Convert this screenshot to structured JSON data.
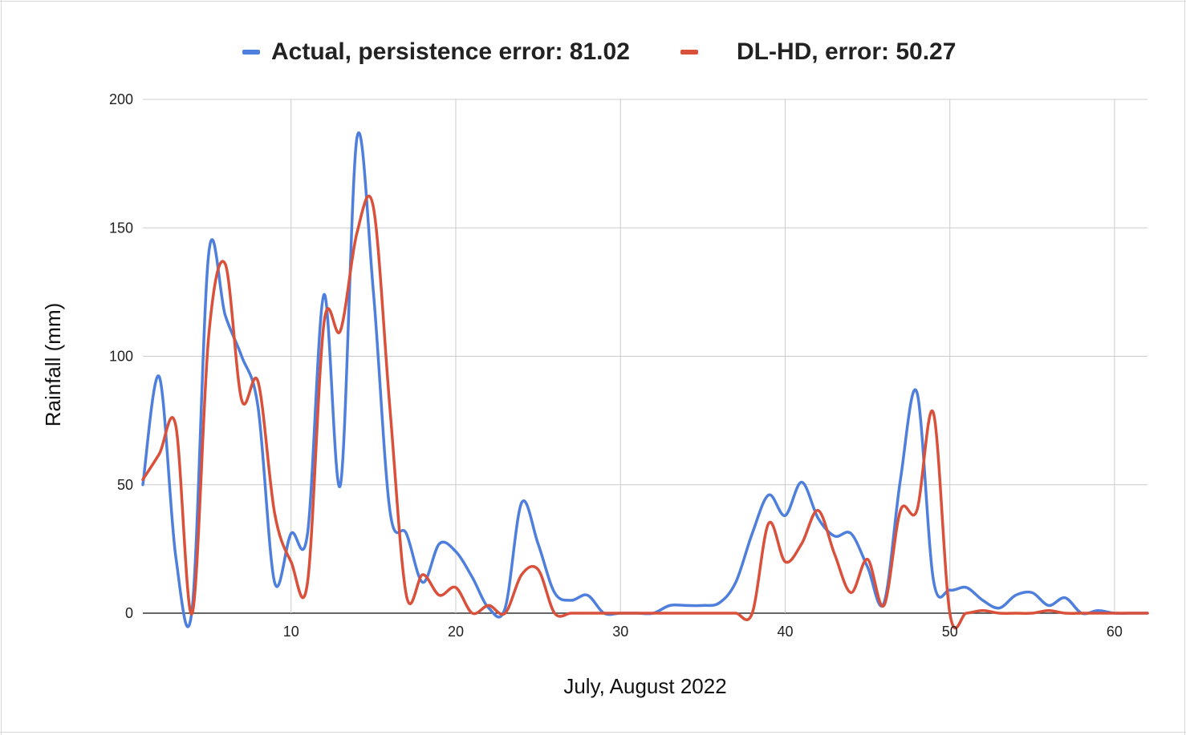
{
  "chart_data": {
    "type": "line",
    "title": "",
    "xlabel": "July, August 2022",
    "ylabel": "Rainfall (mm)",
    "xlim": [
      1,
      62
    ],
    "ylim": [
      0,
      200
    ],
    "x_ticks": [
      10,
      20,
      30,
      40,
      50,
      60
    ],
    "y_ticks": [
      0,
      50,
      100,
      150,
      200
    ],
    "grid": true,
    "legend_position": "top",
    "series": [
      {
        "name": "Actual, persistence error: 81.02",
        "color": "#4f7fdc",
        "points": [
          [
            1,
            50
          ],
          [
            2,
            92
          ],
          [
            3,
            22
          ],
          [
            4,
            2
          ],
          [
            5,
            140
          ],
          [
            6,
            116
          ],
          [
            7,
            100
          ],
          [
            8,
            80
          ],
          [
            9,
            12
          ],
          [
            10,
            31
          ],
          [
            11,
            31
          ],
          [
            12,
            124
          ],
          [
            13,
            50
          ],
          [
            14,
            185
          ],
          [
            15,
            125
          ],
          [
            16,
            40
          ],
          [
            17,
            31
          ],
          [
            18,
            12
          ],
          [
            19,
            27
          ],
          [
            20,
            24
          ],
          [
            21,
            14
          ],
          [
            22,
            2
          ],
          [
            23,
            2
          ],
          [
            24,
            43
          ],
          [
            25,
            27
          ],
          [
            26,
            8
          ],
          [
            27,
            5
          ],
          [
            28,
            7
          ],
          [
            29,
            0
          ],
          [
            30,
            0
          ],
          [
            31,
            0
          ],
          [
            32,
            0
          ],
          [
            33,
            3
          ],
          [
            34,
            3
          ],
          [
            35,
            3
          ],
          [
            36,
            4
          ],
          [
            37,
            12
          ],
          [
            38,
            31
          ],
          [
            39,
            46
          ],
          [
            40,
            38
          ],
          [
            41,
            51
          ],
          [
            42,
            37
          ],
          [
            43,
            30
          ],
          [
            44,
            31
          ],
          [
            45,
            18
          ],
          [
            46,
            4
          ],
          [
            47,
            52
          ],
          [
            48,
            86
          ],
          [
            49,
            13
          ],
          [
            50,
            9
          ],
          [
            51,
            10
          ],
          [
            52,
            5
          ],
          [
            53,
            2
          ],
          [
            54,
            7
          ],
          [
            55,
            8
          ],
          [
            56,
            3
          ],
          [
            57,
            6
          ],
          [
            58,
            0
          ],
          [
            59,
            1
          ],
          [
            60,
            0
          ],
          [
            61,
            0
          ],
          [
            62,
            0
          ]
        ]
      },
      {
        "name": "DL-HD, error: 50.27",
        "color": "#d9503b",
        "points": [
          [
            1,
            52
          ],
          [
            2,
            62
          ],
          [
            3,
            73
          ],
          [
            4,
            0
          ],
          [
            5,
            108
          ],
          [
            6,
            136
          ],
          [
            7,
            83
          ],
          [
            8,
            90
          ],
          [
            9,
            39
          ],
          [
            10,
            20
          ],
          [
            11,
            12
          ],
          [
            12,
            113
          ],
          [
            13,
            110
          ],
          [
            14,
            148
          ],
          [
            15,
            158
          ],
          [
            16,
            80
          ],
          [
            17,
            7
          ],
          [
            18,
            15
          ],
          [
            19,
            7
          ],
          [
            20,
            10
          ],
          [
            21,
            0
          ],
          [
            22,
            3
          ],
          [
            23,
            0
          ],
          [
            24,
            15
          ],
          [
            25,
            17
          ],
          [
            26,
            0
          ],
          [
            27,
            0
          ],
          [
            28,
            0
          ],
          [
            29,
            0
          ],
          [
            30,
            0
          ],
          [
            31,
            0
          ],
          [
            32,
            0
          ],
          [
            33,
            0
          ],
          [
            34,
            0
          ],
          [
            35,
            0
          ],
          [
            36,
            0
          ],
          [
            37,
            0
          ],
          [
            38,
            0
          ],
          [
            39,
            35
          ],
          [
            40,
            20
          ],
          [
            41,
            27
          ],
          [
            42,
            40
          ],
          [
            43,
            23
          ],
          [
            44,
            8
          ],
          [
            45,
            21
          ],
          [
            46,
            3
          ],
          [
            47,
            40
          ],
          [
            48,
            40
          ],
          [
            49,
            78
          ],
          [
            50,
            0
          ],
          [
            51,
            0
          ],
          [
            52,
            1
          ],
          [
            53,
            0
          ],
          [
            54,
            0
          ],
          [
            55,
            0
          ],
          [
            56,
            1
          ],
          [
            57,
            0
          ],
          [
            58,
            0
          ],
          [
            59,
            0
          ],
          [
            60,
            0
          ],
          [
            61,
            0
          ],
          [
            62,
            0
          ]
        ]
      }
    ]
  }
}
